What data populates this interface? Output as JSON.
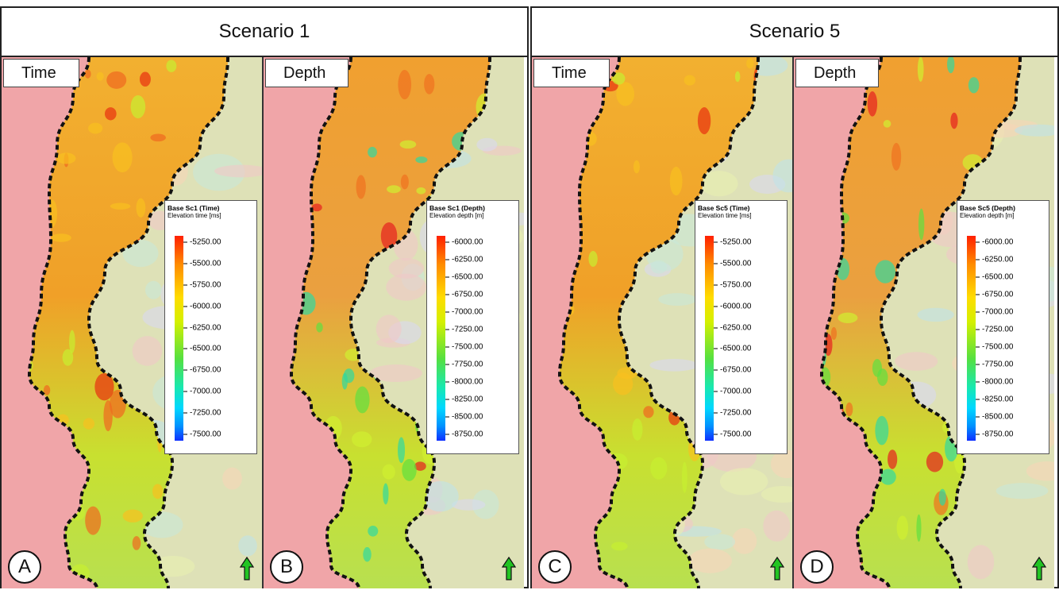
{
  "scenarios": [
    {
      "title": "Scenario 1",
      "panels": [
        {
          "mode": "Time",
          "letter": "A",
          "legend": {
            "title": "Base Sc1 (Time)",
            "subtitle": "Elevation time [ms]",
            "ticks": [
              "-5250.00",
              "-5500.00",
              "-5750.00",
              "-6000.00",
              "-6250.00",
              "-6500.00",
              "-6750.00",
              "-7000.00",
              "-7250.00",
              "-7500.00"
            ]
          }
        },
        {
          "mode": "Depth",
          "letter": "B",
          "legend": {
            "title": "Base Sc1 (Depth)",
            "subtitle": "Elevation depth [m]",
            "ticks": [
              "-6000.00",
              "-6250.00",
              "-6500.00",
              "-6750.00",
              "-7000.00",
              "-7250.00",
              "-7500.00",
              "-7750.00",
              "-8000.00",
              "-8250.00",
              "-8500.00",
              "-8750.00"
            ]
          }
        }
      ]
    },
    {
      "title": "Scenario 5",
      "panels": [
        {
          "mode": "Time",
          "letter": "C",
          "legend": {
            "title": "Base Sc5 (Time)",
            "subtitle": "Elevation time [ms]",
            "ticks": [
              "-5250.00",
              "-5500.00",
              "-5750.00",
              "-6000.00",
              "-6250.00",
              "-6500.00",
              "-6750.00",
              "-7000.00",
              "-7250.00",
              "-7500.00"
            ]
          }
        },
        {
          "mode": "Depth",
          "letter": "D",
          "legend": {
            "title": "Base Sc5 (Depth)",
            "subtitle": "Elevation depth [m]",
            "ticks": [
              "-6000.00",
              "-6250.00",
              "-6500.00",
              "-6750.00",
              "-7000.00",
              "-7250.00",
              "-7500.00",
              "-7750.00",
              "-8000.00",
              "-8250.00",
              "-8500.00",
              "-8750.00"
            ]
          }
        }
      ]
    }
  ],
  "colors": {
    "background_high": "#f0a5a8",
    "channel_outline": "#111111",
    "north_arrow": "#22c422",
    "colorbar": [
      "#ff2000",
      "#ff8c00",
      "#ffdc00",
      "#d4f000",
      "#55e040",
      "#18e8b0",
      "#00d8ff",
      "#0090ff",
      "#1030ff"
    ]
  },
  "icons": {
    "north_arrow": "north-arrow-icon"
  }
}
